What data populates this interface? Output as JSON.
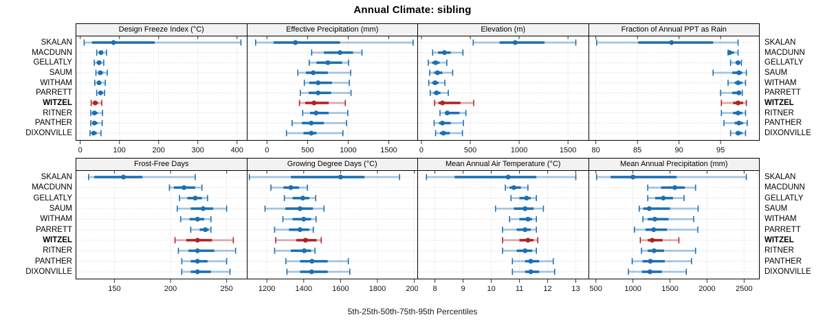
{
  "title": "Annual Climate: sibling",
  "footer": "5th-25th-50th-75th-95th Percentiles",
  "stations": [
    "SKALAN",
    "MACDUNN",
    "GELLATLY",
    "SAUM",
    "WITHAM",
    "PARRETT",
    "WITZEL",
    "RITNER",
    "PANTHER",
    "DIXONVILLE"
  ],
  "highlight_station": "WITZEL",
  "colors": {
    "series_blue": "#1b6fb4",
    "highlight_red": "#b22222",
    "strip_bg": "#f2f2f2",
    "grid": "#cdcdcd",
    "border": "#000000",
    "tick": "#333333"
  },
  "percentiles_shown": [
    5,
    25,
    50,
    75,
    95
  ],
  "chart_data": [
    {
      "type": "percentile-dotplot",
      "row": 0,
      "title": "Design Freeze Index (°C)",
      "xlim": [
        -10,
        425
      ],
      "xticks": [
        0,
        100,
        200,
        300,
        400
      ],
      "series": [
        {
          "name": "SKALAN",
          "values": [
            10,
            30,
            85,
            190,
            410
          ]
        },
        {
          "name": "MACDUNN",
          "values": [
            42,
            48,
            53,
            58,
            67
          ]
        },
        {
          "name": "GELLATLY",
          "values": [
            36,
            43,
            48,
            54,
            60
          ]
        },
        {
          "name": "SAUM",
          "values": [
            40,
            46,
            51,
            58,
            69
          ]
        },
        {
          "name": "WITHAM",
          "values": [
            37,
            43,
            48,
            53,
            64
          ]
        },
        {
          "name": "PARRETT",
          "values": [
            42,
            47,
            52,
            57,
            62
          ]
        },
        {
          "name": "WITZEL",
          "values": [
            28,
            33,
            38,
            45,
            55
          ]
        },
        {
          "name": "RITNER",
          "values": [
            27,
            32,
            36,
            44,
            57
          ]
        },
        {
          "name": "PANTHER",
          "values": [
            27,
            31,
            36,
            44,
            56
          ]
        },
        {
          "name": "DIXONVILLE",
          "values": [
            25,
            30,
            34,
            42,
            53
          ]
        }
      ]
    },
    {
      "type": "percentile-dotplot",
      "row": 0,
      "title": "Effective Precipitation (mm)",
      "xlim": [
        -240,
        1860
      ],
      "xticks": [
        0,
        500,
        1000,
        1500
      ],
      "series": [
        {
          "name": "SKALAN",
          "values": [
            -140,
            80,
            350,
            900,
            1800
          ]
        },
        {
          "name": "MACDUNN",
          "values": [
            550,
            700,
            900,
            1060,
            1170
          ]
        },
        {
          "name": "GELLATLY",
          "values": [
            520,
            610,
            750,
            925,
            1005
          ]
        },
        {
          "name": "SAUM",
          "values": [
            380,
            480,
            570,
            750,
            1030
          ]
        },
        {
          "name": "WITHAM",
          "values": [
            460,
            520,
            630,
            800,
            1015
          ]
        },
        {
          "name": "PARRETT",
          "values": [
            410,
            515,
            630,
            790,
            1035
          ]
        },
        {
          "name": "WITZEL",
          "values": [
            400,
            470,
            580,
            760,
            965
          ]
        },
        {
          "name": "RITNER",
          "values": [
            440,
            530,
            605,
            760,
            995
          ]
        },
        {
          "name": "PANTHER",
          "values": [
            310,
            430,
            545,
            700,
            980
          ]
        },
        {
          "name": "DIXONVILLE",
          "values": [
            240,
            450,
            545,
            610,
            935
          ]
        }
      ]
    },
    {
      "type": "percentile-dotplot",
      "row": 0,
      "title": "Elevation (m)",
      "xlim": [
        -35,
        1710
      ],
      "xticks": [
        0,
        500,
        1000,
        1500
      ],
      "series": [
        {
          "name": "SKALAN",
          "values": [
            530,
            800,
            960,
            1260,
            1580
          ]
        },
        {
          "name": "MACDUNN",
          "values": [
            115,
            170,
            235,
            300,
            425
          ]
        },
        {
          "name": "GELLATLY",
          "values": [
            70,
            110,
            145,
            185,
            260
          ]
        },
        {
          "name": "SAUM",
          "values": [
            85,
            130,
            165,
            215,
            320
          ]
        },
        {
          "name": "WITHAM",
          "values": [
            75,
            110,
            140,
            175,
            240
          ]
        },
        {
          "name": "PARRETT",
          "values": [
            90,
            125,
            155,
            195,
            275
          ]
        },
        {
          "name": "WITZEL",
          "values": [
            135,
            175,
            215,
            400,
            535
          ]
        },
        {
          "name": "RITNER",
          "values": [
            190,
            240,
            265,
            390,
            455
          ]
        },
        {
          "name": "PANTHER",
          "values": [
            130,
            180,
            215,
            300,
            430
          ]
        },
        {
          "name": "DIXONVILLE",
          "values": [
            145,
            190,
            225,
            290,
            420
          ]
        }
      ]
    },
    {
      "type": "percentile-dotplot",
      "row": 0,
      "title": "Fraction of Annual PPT as Rain",
      "xlim": [
        79.2,
        99.7
      ],
      "xticks": [
        80,
        85,
        90,
        95
      ],
      "series": [
        {
          "name": "SKALAN",
          "values": [
            80.1,
            85.1,
            89.1,
            94.1,
            97.1
          ]
        },
        {
          "name": "MACDUNN",
          "values": [
            95.9,
            96.0,
            96.1,
            96.6,
            97.1
          ]
        },
        {
          "name": "GELLATLY",
          "values": [
            96.2,
            96.8,
            97.1,
            97.3,
            97.5
          ]
        },
        {
          "name": "SAUM",
          "values": [
            94.1,
            96.4,
            97.2,
            97.6,
            98.1
          ]
        },
        {
          "name": "WITHAM",
          "values": [
            95.9,
            96.7,
            97.1,
            97.6,
            98.0
          ]
        },
        {
          "name": "PARRETT",
          "values": [
            95.0,
            96.4,
            97.2,
            97.4,
            97.6
          ]
        },
        {
          "name": "WITZEL",
          "values": [
            95.1,
            96.5,
            97.1,
            97.7,
            98.1
          ]
        },
        {
          "name": "RITNER",
          "values": [
            95.1,
            96.5,
            97.1,
            97.6,
            98.0
          ]
        },
        {
          "name": "PANTHER",
          "values": [
            95.4,
            96.7,
            97.2,
            97.7,
            98.2
          ]
        },
        {
          "name": "DIXONVILLE",
          "values": [
            96.2,
            96.8,
            97.1,
            97.6,
            98.0
          ]
        }
      ]
    },
    {
      "type": "percentile-dotplot",
      "row": 1,
      "title": "Frost-Free Days",
      "xlim": [
        116,
        268
      ],
      "xticks": [
        150,
        200,
        250
      ],
      "series": [
        {
          "name": "SKALAN",
          "values": [
            127,
            132,
            158,
            175,
            222
          ]
        },
        {
          "name": "MACDUNN",
          "values": [
            199,
            203,
            212,
            222,
            228
          ]
        },
        {
          "name": "GELLATLY",
          "values": [
            208,
            215,
            222,
            228,
            233
          ]
        },
        {
          "name": "SAUM",
          "values": [
            206,
            218,
            229,
            238,
            250
          ]
        },
        {
          "name": "WITHAM",
          "values": [
            209,
            217,
            224,
            230,
            236
          ]
        },
        {
          "name": "PARRETT",
          "values": [
            218,
            226,
            231,
            234,
            236
          ]
        },
        {
          "name": "WITZEL",
          "values": [
            204,
            214,
            224,
            237,
            256
          ]
        },
        {
          "name": "RITNER",
          "values": [
            207,
            216,
            224,
            239,
            258
          ]
        },
        {
          "name": "PANTHER",
          "values": [
            210,
            218,
            224,
            233,
            250
          ]
        },
        {
          "name": "DIXONVILLE",
          "values": [
            210,
            218,
            224,
            236,
            253
          ]
        }
      ]
    },
    {
      "type": "percentile-dotplot",
      "row": 1,
      "title": "Growing Degree Days (°C)",
      "xlim": [
        1095,
        2020
      ],
      "xticks": [
        1200,
        1400,
        1600,
        1800,
        2000
      ],
      "series": [
        {
          "name": "SKALAN",
          "values": [
            1105,
            1330,
            1600,
            1730,
            1920
          ]
        },
        {
          "name": "MACDUNN",
          "values": [
            1222,
            1290,
            1330,
            1375,
            1420
          ]
        },
        {
          "name": "GELLATLY",
          "values": [
            1295,
            1340,
            1395,
            1430,
            1465
          ]
        },
        {
          "name": "SAUM",
          "values": [
            1190,
            1300,
            1380,
            1450,
            1510
          ]
        },
        {
          "name": "WITHAM",
          "values": [
            1287,
            1340,
            1400,
            1440,
            1467
          ]
        },
        {
          "name": "PARRETT",
          "values": [
            1242,
            1320,
            1380,
            1430,
            1452
          ]
        },
        {
          "name": "WITZEL",
          "values": [
            1248,
            1360,
            1410,
            1470,
            1495
          ]
        },
        {
          "name": "RITNER",
          "values": [
            1242,
            1330,
            1403,
            1440,
            1461
          ]
        },
        {
          "name": "PANTHER",
          "values": [
            1303,
            1380,
            1445,
            1530,
            1642
          ]
        },
        {
          "name": "DIXONVILLE",
          "values": [
            1309,
            1380,
            1443,
            1530,
            1650
          ]
        }
      ]
    },
    {
      "type": "percentile-dotplot",
      "row": 1,
      "title": "Mean Annual Air Temperature (°C)",
      "xlim": [
        7.4,
        13.45
      ],
      "xticks": [
        8,
        9,
        10,
        11,
        12,
        13
      ],
      "series": [
        {
          "name": "SKALAN",
          "values": [
            7.7,
            8.7,
            10.6,
            11.6,
            13.0
          ]
        },
        {
          "name": "MACDUNN",
          "values": [
            10.5,
            10.65,
            10.8,
            11.05,
            11.3
          ]
        },
        {
          "name": "GELLATLY",
          "values": [
            10.7,
            11.0,
            11.25,
            11.4,
            11.6
          ]
        },
        {
          "name": "SAUM",
          "values": [
            10.15,
            10.8,
            11.2,
            11.5,
            11.85
          ]
        },
        {
          "name": "WITHAM",
          "values": [
            10.65,
            11.0,
            11.3,
            11.45,
            11.6
          ]
        },
        {
          "name": "PARRETT",
          "values": [
            10.4,
            10.9,
            11.2,
            11.4,
            11.6
          ]
        },
        {
          "name": "WITZEL",
          "values": [
            10.4,
            11.0,
            11.3,
            11.5,
            11.65
          ]
        },
        {
          "name": "RITNER",
          "values": [
            10.4,
            10.9,
            11.2,
            11.45,
            11.6
          ]
        },
        {
          "name": "PANTHER",
          "values": [
            10.75,
            11.2,
            11.4,
            11.7,
            12.2
          ]
        },
        {
          "name": "DIXONVILLE",
          "values": [
            10.75,
            11.2,
            11.4,
            11.7,
            12.25
          ]
        }
      ]
    },
    {
      "type": "percentile-dotplot",
      "row": 1,
      "title": "Mean Annual Precipitation (mm)",
      "xlim": [
        410,
        2710
      ],
      "xticks": [
        500,
        1000,
        1500,
        2000,
        2500
      ],
      "series": [
        {
          "name": "SKALAN",
          "values": [
            510,
            700,
            1000,
            1590,
            2530
          ]
        },
        {
          "name": "MACDUNN",
          "values": [
            1200,
            1380,
            1565,
            1700,
            1845
          ]
        },
        {
          "name": "GELLATLY",
          "values": [
            1200,
            1300,
            1410,
            1540,
            1690
          ]
        },
        {
          "name": "SAUM",
          "values": [
            1085,
            1140,
            1220,
            1500,
            1880
          ]
        },
        {
          "name": "WITHAM",
          "values": [
            1135,
            1200,
            1295,
            1480,
            1820
          ]
        },
        {
          "name": "PARRETT",
          "values": [
            1020,
            1170,
            1280,
            1460,
            1875
          ]
        },
        {
          "name": "WITZEL",
          "values": [
            1100,
            1200,
            1260,
            1400,
            1620
          ]
        },
        {
          "name": "RITNER",
          "values": [
            1115,
            1200,
            1285,
            1420,
            1845
          ]
        },
        {
          "name": "PANTHER",
          "values": [
            990,
            1130,
            1235,
            1430,
            1790
          ]
        },
        {
          "name": "DIXONVILLE",
          "values": [
            940,
            1120,
            1230,
            1390,
            1720
          ]
        }
      ]
    }
  ]
}
